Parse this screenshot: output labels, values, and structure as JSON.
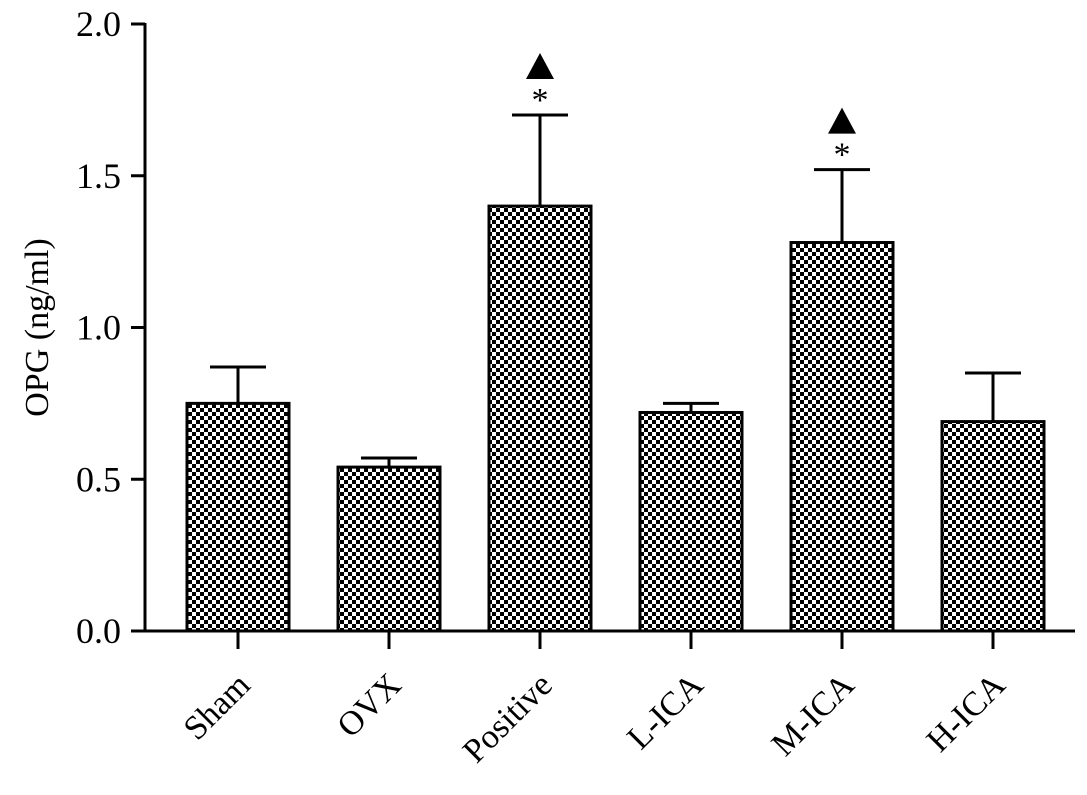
{
  "chart_data": {
    "type": "bar",
    "categories": [
      "Sham",
      "OVX",
      "Positive",
      "L-ICA",
      "M-ICA",
      "H-ICA"
    ],
    "values": [
      0.75,
      0.54,
      1.4,
      0.72,
      1.28,
      0.69
    ],
    "errors": [
      0.12,
      0.03,
      0.3,
      0.03,
      0.24,
      0.16
    ],
    "annotations": [
      {
        "category": "Positive",
        "marks": [
          "▲",
          "*"
        ]
      },
      {
        "category": "M-ICA",
        "marks": [
          "▲",
          "*"
        ]
      }
    ],
    "ylabel": "OPG (ng/ml)",
    "xlabel": "",
    "title": "",
    "ylim": [
      0.0,
      2.0
    ],
    "yticks": [
      0.0,
      0.5,
      1.0,
      1.5,
      2.0
    ],
    "ytick_labels": [
      "0.0",
      "0.5",
      "1.0",
      "1.5",
      "2.0"
    ],
    "bar_pattern": "checkerboard",
    "colors": {
      "bar_dark": "#000000",
      "bar_light": "#ffffff"
    },
    "grid": false,
    "legend": "none"
  }
}
